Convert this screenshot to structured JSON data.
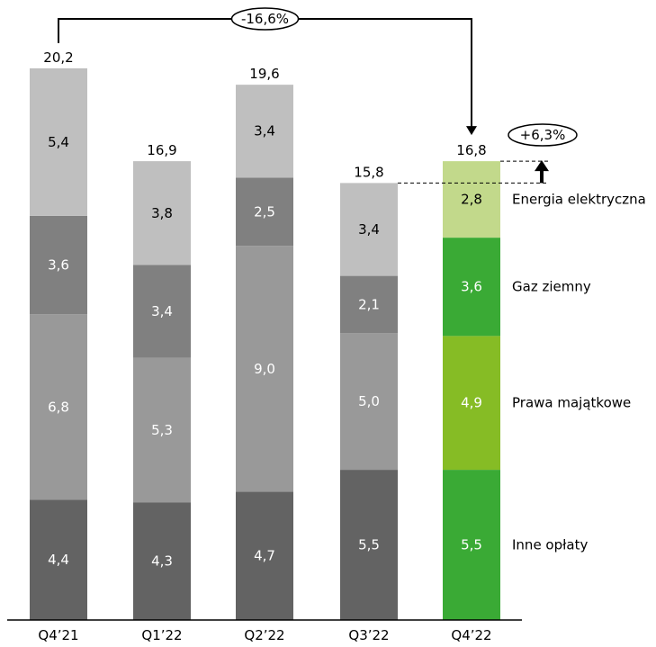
{
  "chart_data": {
    "type": "bar",
    "stacked": true,
    "categories": [
      "Q4’21",
      "Q1’22",
      "Q2’22",
      "Q3’22",
      "Q4’22"
    ],
    "series": [
      {
        "name": "Inne opłaty",
        "values": [
          4.4,
          4.3,
          4.7,
          5.5,
          5.5
        ],
        "value_labels": [
          "4,4",
          "4,3",
          "4,7",
          "5,5",
          "5,5"
        ]
      },
      {
        "name": "Prawa majątkowe",
        "values": [
          6.8,
          5.3,
          9.0,
          5.0,
          4.9
        ],
        "value_labels": [
          "6,8",
          "5,3",
          "9,0",
          "5,0",
          "4,9"
        ]
      },
      {
        "name": "Gaz ziemny",
        "values": [
          3.6,
          3.4,
          2.5,
          2.1,
          3.6
        ],
        "value_labels": [
          "3,6",
          "3,4",
          "2,5",
          "2,1",
          "3,6"
        ]
      },
      {
        "name": "Energia elektryczna",
        "values": [
          5.4,
          3.8,
          3.4,
          3.4,
          2.8
        ],
        "value_labels": [
          "5,4",
          "3,8",
          "3,4",
          "3,4",
          "2,8"
        ]
      }
    ],
    "totals": [
      20.2,
      16.9,
      19.6,
      15.8,
      16.8
    ],
    "total_labels": [
      "20,2",
      "16,9",
      "19,6",
      "15,8",
      "16,8"
    ],
    "annotations": {
      "yoy_change": "-16,6%",
      "qoq_change": "+6,3%"
    },
    "colors": {
      "grey": [
        "#636363",
        "#999999",
        "#808080",
        "#bfbfbf"
      ],
      "green": [
        "#3aaa35",
        "#86bc25",
        "#3aaa35",
        "#c2d98b"
      ]
    },
    "legend_placement": "right of last bar",
    "grid": false,
    "ylim": [
      0,
      21
    ]
  }
}
